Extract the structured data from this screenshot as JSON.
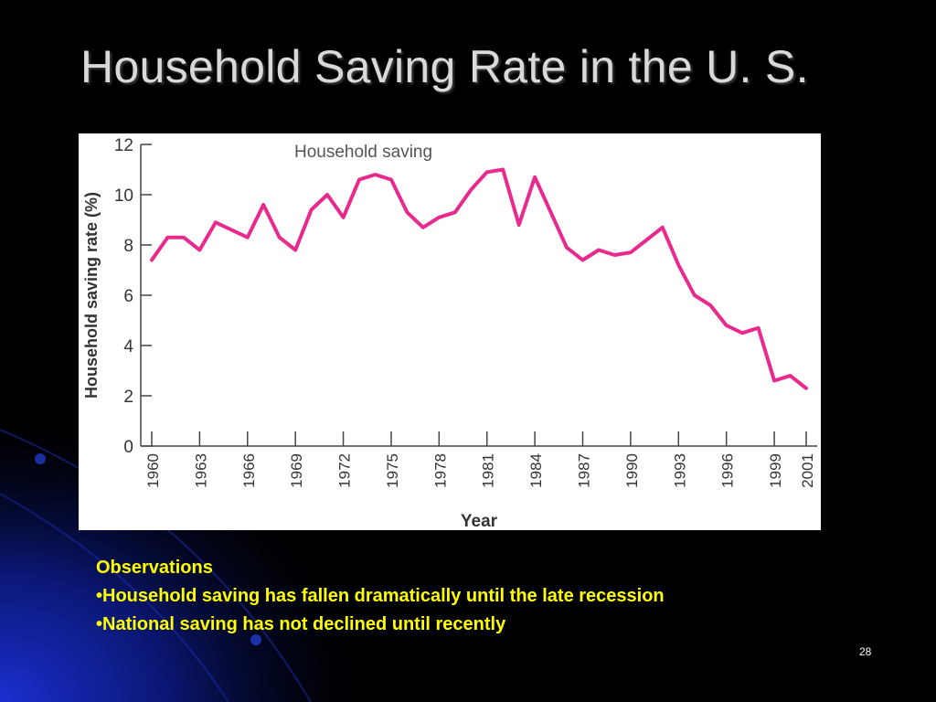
{
  "slide": {
    "title": "Household Saving Rate in the U. S.",
    "page_number": "28",
    "text_color": "#ffff00",
    "background_color": "#000000",
    "accent_color": "#1a2fd0"
  },
  "notes": {
    "heading": "Observations",
    "bullets": [
      "•Household saving has fallen dramatically until the late recession",
      "•National saving has not declined until recently"
    ]
  },
  "chart_data": {
    "type": "line",
    "title": "",
    "xlabel": "Year",
    "ylabel": "Household saving rate (%)",
    "series": [
      {
        "name": "Household saving",
        "color": "#e8298d",
        "x": [
          1960,
          1961,
          1962,
          1963,
          1964,
          1965,
          1966,
          1967,
          1968,
          1969,
          1970,
          1971,
          1972,
          1973,
          1974,
          1975,
          1976,
          1977,
          1978,
          1979,
          1980,
          1981,
          1982,
          1983,
          1984,
          1985,
          1986,
          1987,
          1988,
          1989,
          1990,
          1991,
          1992,
          1993,
          1994,
          1995,
          1996,
          1997,
          1998,
          1999,
          2000,
          2001
        ],
        "values": [
          7.4,
          8.3,
          8.3,
          7.8,
          8.9,
          8.6,
          8.3,
          9.6,
          8.3,
          7.8,
          9.4,
          10.0,
          9.1,
          10.6,
          10.8,
          10.6,
          9.3,
          8.7,
          9.1,
          9.3,
          10.2,
          10.9,
          11.0,
          8.8,
          10.7,
          9.3,
          7.9,
          7.4,
          7.8,
          7.6,
          7.7,
          8.2,
          8.7,
          7.2,
          6.0,
          5.6,
          4.8,
          4.5,
          4.7,
          2.6,
          2.8,
          2.3
        ]
      }
    ],
    "xticks": [
      "1960",
      "1963",
      "1966",
      "1969",
      "1972",
      "1975",
      "1978",
      "1981",
      "1984",
      "1987",
      "1990",
      "1993",
      "1996",
      "1999",
      "2001"
    ],
    "yticks": [
      "0",
      "2",
      "4",
      "6",
      "8",
      "10",
      "12"
    ],
    "xlim": [
      1960,
      2001
    ],
    "ylim": [
      0,
      12
    ],
    "grid": false,
    "legend_position": "top-center"
  }
}
